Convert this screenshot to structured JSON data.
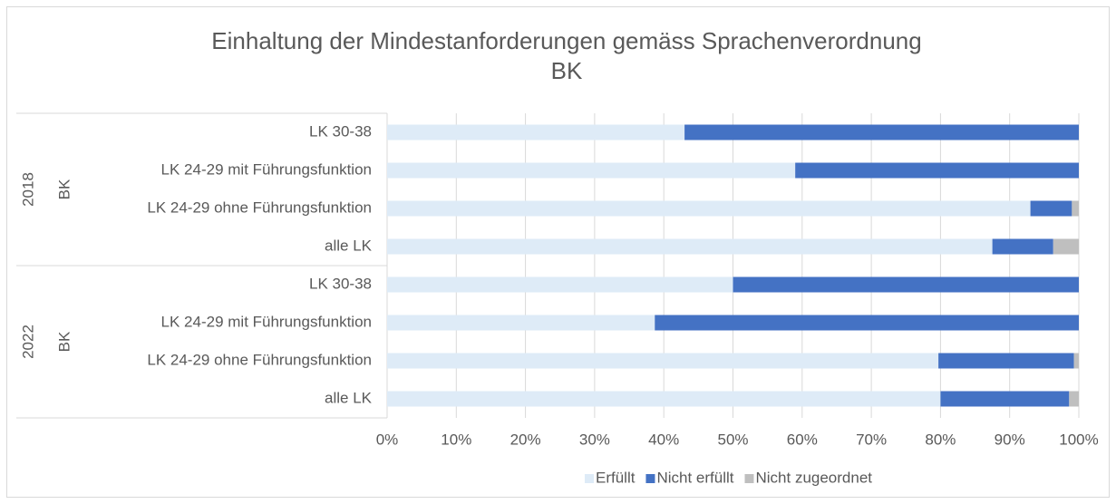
{
  "chart_data": {
    "type": "stacked_bar_horizontal",
    "title": [
      "Einhaltung der Mindestanforderungen gemäss Sprachenverordnung",
      "BK"
    ],
    "groups": [
      {
        "label": "2018",
        "sublabel": "BK",
        "categories": [
          "LK 30-38",
          "LK 24-29 mit Führungsfunktion",
          "LK 24-29 ohne Führungsfunktion",
          "alle LK"
        ]
      },
      {
        "label": "2022",
        "sublabel": "BK",
        "categories": [
          "LK 30-38",
          "LK 24-29 mit Führungsfunktion",
          "LK 24-29 ohne Führungsfunktion",
          "alle LK"
        ]
      }
    ],
    "series": [
      {
        "name": "Erfüllt",
        "color": "#deebf7",
        "values": [
          43,
          59,
          93,
          87.5,
          50,
          38.7,
          79.7,
          80
        ]
      },
      {
        "name": "Nicht erfüllt",
        "color": "#4472c4",
        "values": [
          57,
          41,
          6,
          8.8,
          50,
          61.3,
          19.6,
          18.6
        ]
      },
      {
        "name": "Nicht zugeordnet",
        "color": "#bfbfbf",
        "values": [
          0,
          0,
          1,
          3.7,
          0,
          0,
          0.7,
          1.4
        ]
      }
    ],
    "xlim": [
      0,
      100
    ],
    "xticks": [
      {
        "value": 0,
        "label": "0%"
      },
      {
        "value": 10,
        "label": "10%"
      },
      {
        "value": 20,
        "label": "20%"
      },
      {
        "value": 30,
        "label": "30%"
      },
      {
        "value": 40,
        "label": "40%"
      },
      {
        "value": 50,
        "label": "50%"
      },
      {
        "value": 60,
        "label": "60%"
      },
      {
        "value": 70,
        "label": "70%"
      },
      {
        "value": 80,
        "label": "80%"
      },
      {
        "value": 90,
        "label": "90%"
      },
      {
        "value": 100,
        "label": "100%"
      }
    ],
    "grid": true,
    "legend": "bottom"
  }
}
